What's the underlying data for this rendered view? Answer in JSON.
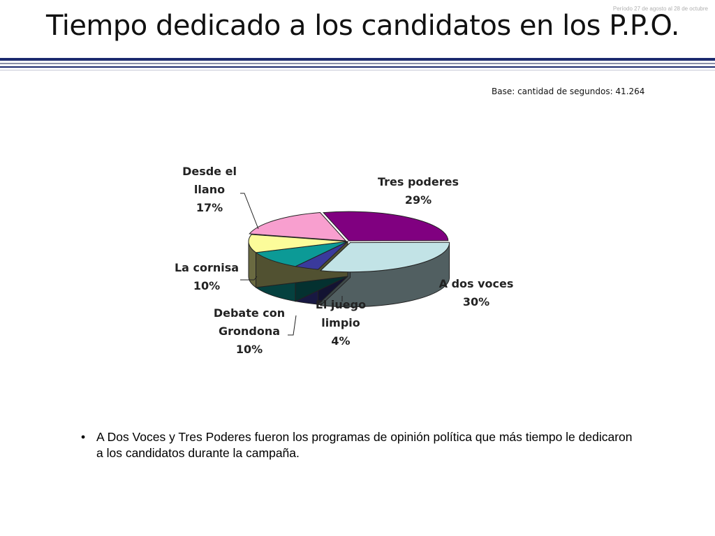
{
  "header": {
    "period": "Período 27 de agosto al 28 de octubre",
    "title": "Tiempo dedicado a los candidatos en los P.P.O."
  },
  "base_note": "Base: cantidad de segundos: 41.264",
  "chart_data": {
    "type": "pie",
    "style": "3d-exploded-oblique",
    "title": "",
    "slices": [
      {
        "id": "tres-poderes",
        "lines": [
          "Tres poderes",
          "29%"
        ],
        "value": 29,
        "color": "#800080"
      },
      {
        "id": "a-dos-voces",
        "lines": [
          "A dos voces",
          "30%"
        ],
        "value": 30,
        "color": "#c2e3e6"
      },
      {
        "id": "el-juego-limpio",
        "lines": [
          "El juego",
          "limpio",
          "4%"
        ],
        "value": 4,
        "color": "#3a3a9c"
      },
      {
        "id": "debate-con-grondona",
        "lines": [
          "Debate con",
          "Grondona",
          "10%"
        ],
        "value": 10,
        "color": "#0c9a96"
      },
      {
        "id": "la-cornisa",
        "lines": [
          "La cornisa",
          "10%"
        ],
        "value": 10,
        "color": "#fcfc9a"
      },
      {
        "id": "desde-el-llano",
        "lines": [
          "Desde el",
          "llano",
          "17%"
        ],
        "value": 17,
        "color": "#f89fcf"
      }
    ]
  },
  "bullets": [
    "A Dos Voces y Tres Poderes fueron los programas de opinión política que más tiempo le dedicaron a los candidatos durante la campaña."
  ]
}
